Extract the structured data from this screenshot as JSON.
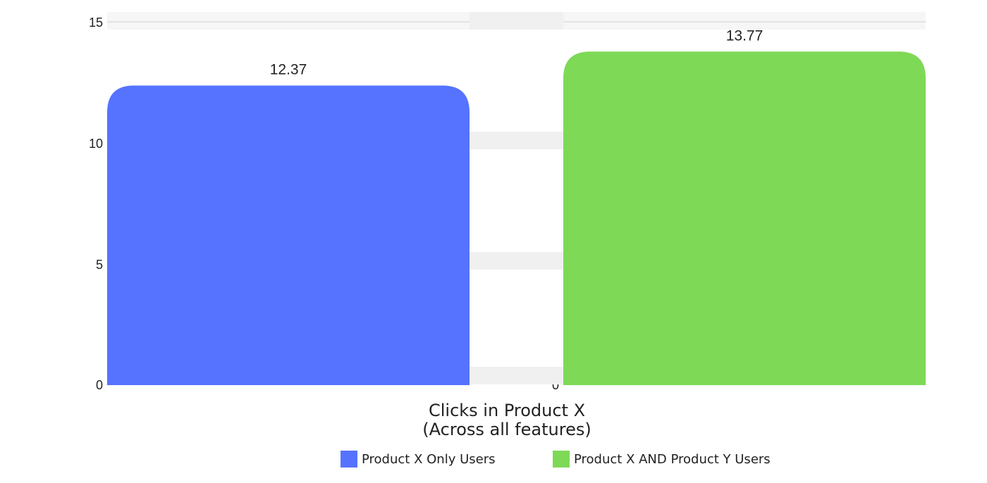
{
  "chart_data": {
    "type": "bar",
    "categories": [
      "Product X Only Users",
      "Product X AND Product Y Users"
    ],
    "values": [
      12.37,
      13.77
    ],
    "data_labels": [
      "12.37",
      "13.77"
    ],
    "colors": [
      "#5573ff",
      "#7ed957"
    ],
    "title": "",
    "xlabel_lines": [
      "Clicks in Product X",
      "(Across all features)"
    ],
    "ylabel": "",
    "ylim": [
      0,
      15
    ],
    "yticks": [
      "0",
      "5",
      "10",
      "15"
    ],
    "grid": true,
    "legend_position": "bottom",
    "legend": [
      {
        "label": "Product X Only Users",
        "color": "#5573ff"
      },
      {
        "label": "Product X AND Product Y Users",
        "color": "#7ed957"
      }
    ]
  }
}
